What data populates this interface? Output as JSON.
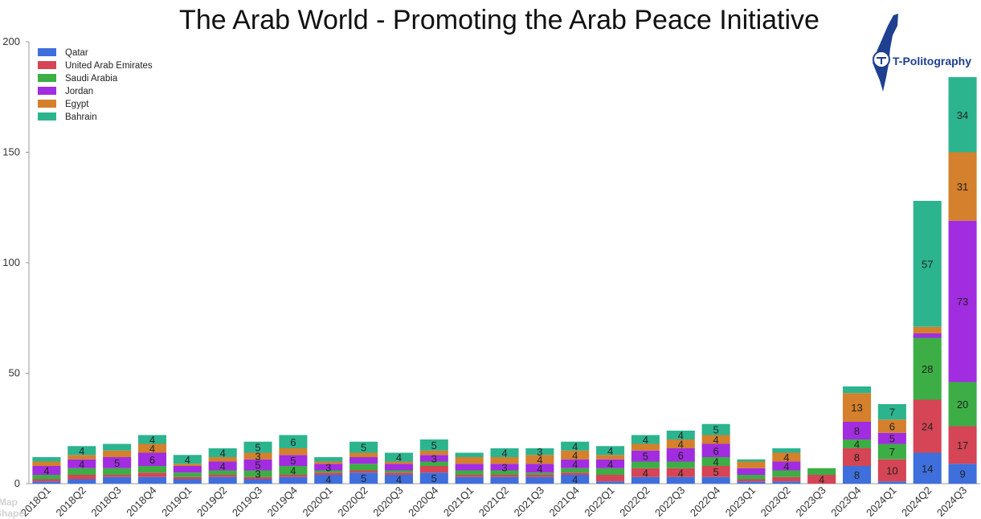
{
  "page": {
    "corner_ghost_text": [
      "Map",
      "Shape"
    ]
  },
  "brand": {
    "name": "T-Politography",
    "color": "#1f3f8f"
  },
  "chart_data": {
    "type": "bar",
    "stacked": true,
    "title": "The Arab World - Promoting the Arab Peace Initiative",
    "xlabel": "",
    "ylabel": "",
    "ylim": [
      0,
      200
    ],
    "yticks": [
      0,
      50,
      100,
      150,
      200
    ],
    "grid": false,
    "legend_position": "top-left",
    "categories": [
      "2018Q1",
      "2018Q2",
      "2018Q3",
      "2018Q4",
      "2019Q1",
      "2019Q2",
      "2019Q3",
      "2019Q4",
      "2020Q1",
      "2020Q2",
      "2020Q3",
      "2020Q4",
      "2021Q1",
      "2021Q2",
      "2021Q3",
      "2021Q4",
      "2022Q1",
      "2022Q2",
      "2022Q3",
      "2022Q4",
      "2023Q1",
      "2023Q2",
      "2023Q3",
      "2023Q4",
      "2024Q1",
      "2024Q2",
      "2024Q3"
    ],
    "series": [
      {
        "name": "Qatar",
        "color": "#3e6fdc",
        "values": [
          1,
          2,
          3,
          3,
          2,
          3,
          2,
          3,
          4,
          5,
          4,
          5,
          3,
          3,
          3,
          4,
          1,
          3,
          3,
          3,
          1,
          1,
          0,
          8,
          1,
          14,
          9
        ],
        "labels": [
          null,
          null,
          null,
          null,
          null,
          null,
          null,
          null,
          "4",
          "5",
          "4",
          "5",
          null,
          null,
          null,
          "4",
          null,
          null,
          null,
          null,
          null,
          null,
          null,
          "8",
          null,
          "14",
          "9"
        ]
      },
      {
        "name": "United Arab Emirates",
        "color": "#d54555",
        "values": [
          1,
          2,
          1,
          2,
          1,
          1,
          1,
          1,
          1,
          1,
          1,
          3,
          1,
          1,
          1,
          1,
          3,
          4,
          4,
          5,
          1,
          2,
          4,
          8,
          10,
          24,
          17
        ],
        "labels": [
          null,
          null,
          null,
          null,
          null,
          null,
          null,
          null,
          null,
          null,
          null,
          null,
          null,
          null,
          null,
          null,
          null,
          "4",
          "4",
          "5",
          null,
          null,
          "4",
          "8",
          "10",
          "24",
          "17"
        ]
      },
      {
        "name": "Saudi Arabia",
        "color": "#3cae45",
        "values": [
          2,
          3,
          3,
          3,
          2,
          2,
          3,
          4,
          1,
          3,
          1,
          2,
          2,
          2,
          1,
          2,
          3,
          3,
          3,
          4,
          2,
          3,
          3,
          4,
          7,
          28,
          20
        ],
        "labels": [
          null,
          null,
          null,
          null,
          null,
          null,
          "3",
          "4",
          null,
          null,
          null,
          null,
          null,
          null,
          null,
          null,
          null,
          null,
          null,
          "4",
          null,
          null,
          null,
          "4",
          "7",
          "28",
          "20"
        ]
      },
      {
        "name": "Jordan",
        "color": "#a22ce0",
        "values": [
          4,
          4,
          5,
          6,
          3,
          4,
          5,
          5,
          3,
          3,
          3,
          3,
          3,
          3,
          4,
          4,
          4,
          5,
          6,
          6,
          3,
          4,
          0,
          8,
          5,
          2,
          73
        ],
        "labels": [
          "4",
          "4",
          "5",
          "6",
          null,
          "4",
          "5",
          "5",
          "3",
          null,
          null,
          "3",
          null,
          "3",
          "4",
          "4",
          "4",
          "5",
          "6",
          "6",
          null,
          "4",
          null,
          "8",
          "5",
          null,
          "73"
        ]
      },
      {
        "name": "Egypt",
        "color": "#d4802c",
        "values": [
          2,
          2,
          3,
          4,
          1,
          2,
          3,
          3,
          1,
          2,
          1,
          2,
          3,
          3,
          4,
          4,
          2,
          3,
          4,
          4,
          3,
          4,
          0,
          13,
          6,
          3,
          31
        ],
        "labels": [
          null,
          null,
          null,
          "4",
          null,
          null,
          "3",
          null,
          null,
          null,
          null,
          null,
          null,
          null,
          "4",
          "4",
          null,
          null,
          "4",
          "4",
          null,
          "4",
          null,
          "13",
          "6",
          null,
          "31"
        ]
      },
      {
        "name": "Bahrain",
        "color": "#2cb48e",
        "values": [
          2,
          4,
          3,
          4,
          4,
          4,
          5,
          6,
          2,
          5,
          4,
          5,
          2,
          4,
          3,
          4,
          4,
          4,
          4,
          5,
          1,
          2,
          0,
          3,
          7,
          57,
          34
        ],
        "labels": [
          null,
          "4",
          null,
          "4",
          "4",
          "4",
          "5",
          "6",
          null,
          "5",
          "4",
          "5",
          null,
          "4",
          "3",
          "4",
          "4",
          "4",
          "4",
          "5",
          null,
          null,
          null,
          null,
          "7",
          "57",
          "34"
        ]
      }
    ]
  }
}
